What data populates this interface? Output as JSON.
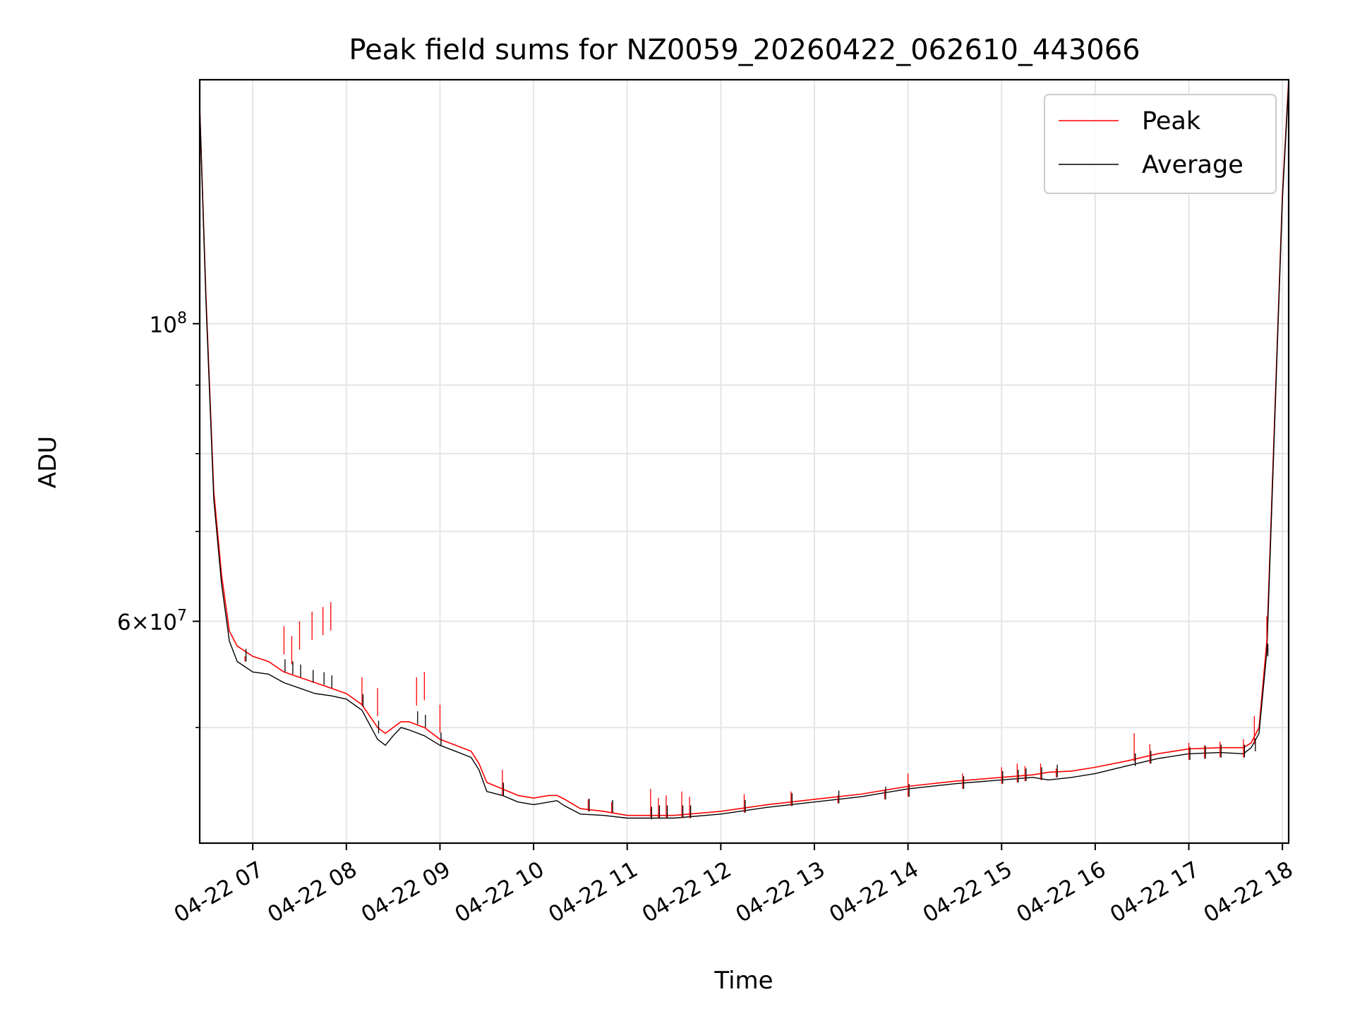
{
  "chart_data": {
    "type": "line",
    "title": "Peak field sums for NZ0059_20260422_062610_443066",
    "xlabel": "Time",
    "ylabel": "ADU",
    "y_scale": "log",
    "xlim": [
      "2026-04-22 06:26",
      "2026-04-22 18:04"
    ],
    "ylim": [
      41000000,
      152000000
    ],
    "x_ticks": [
      "04-22 07",
      "04-22 08",
      "04-22 09",
      "04-22 10",
      "04-22 11",
      "04-22 12",
      "04-22 13",
      "04-22 14",
      "04-22 15",
      "04-22 16",
      "04-22 17",
      "04-22 18"
    ],
    "y_ticks": [
      {
        "value": 100000000,
        "base": "10",
        "exp": "8",
        "mult": ""
      },
      {
        "value": 60000000,
        "base": "10",
        "exp": "7",
        "mult": "6×"
      }
    ],
    "y_minor_ticks": [
      50000000,
      70000000,
      80000000,
      90000000
    ],
    "grid": true,
    "legend_position": "upper-right",
    "x": [
      "06:26",
      "06:30",
      "06:35",
      "06:40",
      "06:45",
      "06:50",
      "06:55",
      "07:00",
      "07:10",
      "07:20",
      "07:30",
      "07:40",
      "07:50",
      "08:00",
      "08:10",
      "08:20",
      "08:25",
      "08:30",
      "08:35",
      "08:40",
      "08:50",
      "09:00",
      "09:10",
      "09:20",
      "09:25",
      "09:30",
      "09:40",
      "09:50",
      "10:00",
      "10:10",
      "10:15",
      "10:20",
      "10:30",
      "10:45",
      "11:00",
      "11:30",
      "12:00",
      "12:30",
      "13:00",
      "13:30",
      "14:00",
      "14:30",
      "15:00",
      "15:20",
      "15:30",
      "15:45",
      "16:00",
      "16:20",
      "16:40",
      "17:00",
      "17:20",
      "17:35",
      "17:40",
      "17:45",
      "17:50",
      "17:55",
      "18:00",
      "18:04"
    ],
    "series": [
      {
        "name": "Peak",
        "color": "#ff0000",
        "values": [
          145000000,
          105000000,
          75000000,
          65000000,
          59000000,
          57500000,
          57000000,
          56500000,
          56000000,
          55000000,
          54500000,
          54000000,
          53500000,
          53000000,
          52000000,
          50000000,
          49500000,
          50000000,
          50500000,
          50500000,
          50000000,
          49000000,
          48500000,
          48000000,
          47000000,
          45500000,
          45000000,
          44500000,
          44300000,
          44500000,
          44500000,
          44200000,
          43500000,
          43300000,
          43000000,
          43000000,
          43300000,
          43800000,
          44200000,
          44600000,
          45200000,
          45600000,
          45900000,
          46100000,
          46300000,
          46400000,
          46700000,
          47200000,
          47800000,
          48200000,
          48300000,
          48300000,
          48700000,
          50000000,
          58000000,
          85000000,
          125000000,
          152000000
        ]
      },
      {
        "name": "Average",
        "color": "#000000",
        "values": [
          145000000,
          104000000,
          74000000,
          64000000,
          58000000,
          56000000,
          55500000,
          55000000,
          54800000,
          54000000,
          53500000,
          53000000,
          52800000,
          52500000,
          51500000,
          49000000,
          48500000,
          49300000,
          50000000,
          49800000,
          49300000,
          48500000,
          48000000,
          47500000,
          46500000,
          44800000,
          44500000,
          44000000,
          43800000,
          44000000,
          44100000,
          43700000,
          43100000,
          43000000,
          42800000,
          42800000,
          43100000,
          43600000,
          44000000,
          44400000,
          45000000,
          45400000,
          45700000,
          45900000,
          45700000,
          45900000,
          46200000,
          46800000,
          47400000,
          47800000,
          47900000,
          47800000,
          48300000,
          49500000,
          57000000,
          84000000,
          124000000,
          151000000
        ]
      }
    ],
    "spikes": [
      {
        "x": "06:55",
        "top": 56500000,
        "bottom": 56000000
      },
      {
        "x": "07:20",
        "top": 59500000,
        "bottom": 55000000
      },
      {
        "x": "07:25",
        "top": 58500000,
        "bottom": 54800000
      },
      {
        "x": "07:30",
        "top": 60000000,
        "bottom": 54500000
      },
      {
        "x": "07:38",
        "top": 61000000,
        "bottom": 54000000
      },
      {
        "x": "07:45",
        "top": 61500000,
        "bottom": 53800000
      },
      {
        "x": "07:50",
        "top": 62000000,
        "bottom": 53500000
      },
      {
        "x": "08:10",
        "top": 54500000,
        "bottom": 51800000
      },
      {
        "x": "08:20",
        "top": 53500000,
        "bottom": 49500000
      },
      {
        "x": "08:45",
        "top": 54500000,
        "bottom": 50300000
      },
      {
        "x": "08:50",
        "top": 55000000,
        "bottom": 50000000
      },
      {
        "x": "09:00",
        "top": 52000000,
        "bottom": 48500000
      },
      {
        "x": "09:40",
        "top": 46500000,
        "bottom": 44500000
      },
      {
        "x": "10:35",
        "top": 44200000,
        "bottom": 43300000
      },
      {
        "x": "10:50",
        "top": 44000000,
        "bottom": 43200000
      },
      {
        "x": "11:15",
        "top": 45000000,
        "bottom": 42700000
      },
      {
        "x": "11:20",
        "top": 44300000,
        "bottom": 42800000
      },
      {
        "x": "11:25",
        "top": 44500000,
        "bottom": 42800000
      },
      {
        "x": "11:35",
        "top": 44800000,
        "bottom": 42800000
      },
      {
        "x": "11:40",
        "top": 44400000,
        "bottom": 42800000
      },
      {
        "x": "12:15",
        "top": 44600000,
        "bottom": 43200000
      },
      {
        "x": "12:45",
        "top": 44800000,
        "bottom": 43700000
      },
      {
        "x": "13:15",
        "top": 44500000,
        "bottom": 43900000
      },
      {
        "x": "13:45",
        "top": 44900000,
        "bottom": 44200000
      },
      {
        "x": "14:00",
        "top": 46200000,
        "bottom": 44400000
      },
      {
        "x": "14:35",
        "top": 46200000,
        "bottom": 45000000
      },
      {
        "x": "15:00",
        "top": 46700000,
        "bottom": 45400000
      },
      {
        "x": "15:10",
        "top": 47000000,
        "bottom": 45500000
      },
      {
        "x": "15:15",
        "top": 46800000,
        "bottom": 45600000
      },
      {
        "x": "15:25",
        "top": 47000000,
        "bottom": 45700000
      },
      {
        "x": "15:35",
        "top": 46600000,
        "bottom": 45900000
      },
      {
        "x": "16:25",
        "top": 49500000,
        "bottom": 46800000
      },
      {
        "x": "16:35",
        "top": 48600000,
        "bottom": 47000000
      },
      {
        "x": "17:00",
        "top": 48700000,
        "bottom": 47300000
      },
      {
        "x": "17:10",
        "top": 48500000,
        "bottom": 47400000
      },
      {
        "x": "17:20",
        "top": 48800000,
        "bottom": 47500000
      },
      {
        "x": "17:35",
        "top": 49000000,
        "bottom": 47500000
      },
      {
        "x": "17:42",
        "top": 51000000,
        "bottom": 48000000
      },
      {
        "x": "17:50",
        "top": 60500000,
        "bottom": 56500000
      }
    ]
  }
}
